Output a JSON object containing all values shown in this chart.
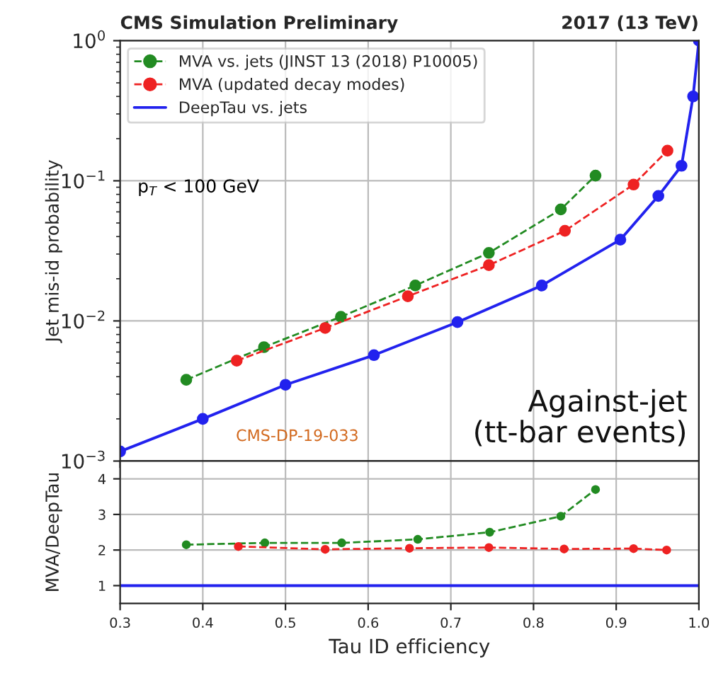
{
  "chart_data": [
    {
      "type": "line",
      "title": "CMS Simulation Preliminary",
      "subtitle": "2017 (13 TeV)",
      "ylabel": "Jet mis-id probability",
      "log": "y",
      "grid": true,
      "legend": "top left",
      "tick_labels": "y",
      "xlim": [
        0.3,
        1.0
      ],
      "ylim": [
        0.001,
        1
      ],
      "yticks": [
        {
          "value": 0.001,
          "label": "10$^{−3}$"
        },
        {
          "value": 0.01,
          "label": "10$^{−2}$"
        },
        {
          "value": 0.1,
          "label": "10$^{−1}$"
        },
        {
          "value": 1,
          "label": "10$^{0}$"
        }
      ],
      "annotations": [
        "p$_{T}$ < 100 GeV",
        "CMS-DP-19-033",
        "Against-jet\n(tt-bar events)"
      ],
      "series": [
        {
          "name": "MVA vs. jets (JINST 13 (2018) P10005)",
          "color": "#228b22",
          "line_style": "dashed",
          "marker": "circle",
          "x": [
            0.38,
            0.474,
            0.567,
            0.657,
            0.746,
            0.833,
            0.875
          ],
          "values": [
            0.0038,
            0.0065,
            0.0107,
            0.0179,
            0.0306,
            0.0625,
            0.109
          ]
        },
        {
          "name": "MVA (updated decay modes)",
          "color": "#ee2222",
          "line_style": "dashed",
          "marker": "circle",
          "x": [
            0.441,
            0.548,
            0.648,
            0.746,
            0.838,
            0.921,
            0.962
          ],
          "values": [
            0.0052,
            0.0089,
            0.015,
            0.025,
            0.044,
            0.094,
            0.164
          ]
        },
        {
          "name": "DeepTau vs. jets",
          "color": "#2222ee",
          "line_style": "solid",
          "marker": "circle",
          "x": [
            0.3,
            0.4,
            0.5,
            0.607,
            0.708,
            0.81,
            0.905,
            0.951,
            0.979,
            0.993,
            1.0
          ],
          "values": [
            0.00117,
            0.002,
            0.0035,
            0.0057,
            0.0098,
            0.0179,
            0.038,
            0.078,
            0.128,
            0.4,
            1.0
          ]
        }
      ]
    },
    {
      "type": "line",
      "xlabel": "Tau ID efficiency",
      "ylabel": "MVA/DeepTau",
      "grid": true,
      "xlim": [
        0.3,
        1.0
      ],
      "ylim": [
        0.5,
        4.5
      ],
      "xticks": [
        0.3,
        0.4,
        0.5,
        0.6,
        0.7,
        0.8,
        0.9,
        {
          "value": 1.0,
          "label": "1.0"
        }
      ],
      "yticks": [
        1,
        2,
        3,
        4
      ],
      "series": [
        {
          "color": "#228b22",
          "line_style": "dashed",
          "marker": "circle",
          "x": [
            0.38,
            0.475,
            0.568,
            0.66,
            0.747,
            0.833,
            0.875
          ],
          "values": [
            2.15,
            2.2,
            2.2,
            2.3,
            2.5,
            2.95,
            3.7
          ]
        },
        {
          "color": "#ee2222",
          "line_style": "dashed",
          "marker": "circle",
          "x": [
            0.443,
            0.548,
            0.65,
            0.746,
            0.837,
            0.921,
            0.961
          ],
          "values": [
            2.1,
            2.02,
            2.05,
            2.07,
            2.03,
            2.04,
            2.0
          ]
        },
        {
          "color": "#2222ee",
          "line_style": "solid",
          "marker": "none",
          "x": [
            0.3,
            1.0
          ],
          "values": [
            1,
            1
          ]
        }
      ]
    }
  ]
}
